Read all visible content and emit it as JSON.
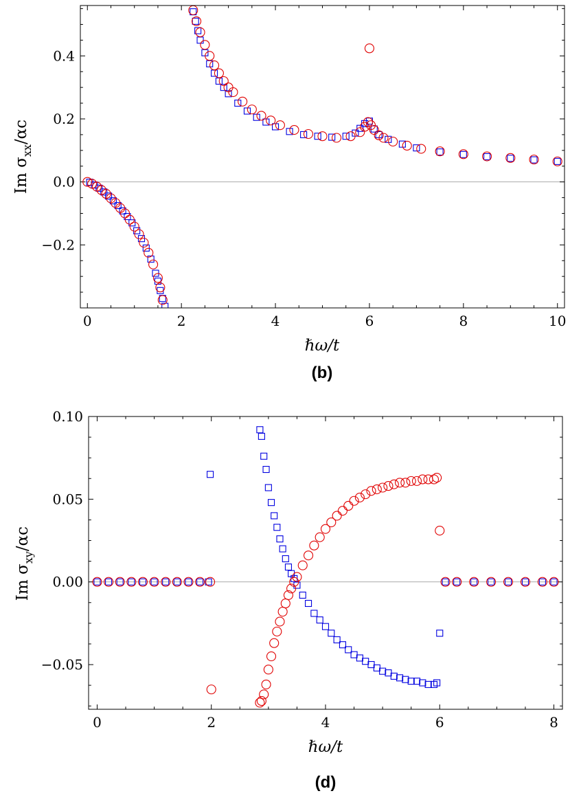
{
  "figure": {
    "panels": [
      "b",
      "d"
    ]
  },
  "chart_data": [
    {
      "type": "scatter",
      "panel": "b",
      "panel_label": "(b)",
      "xlabel": "ℏω/t",
      "ylabel": "Im σ_xx/αc",
      "ylabel_main": "Im σ",
      "ylabel_sub": "xx",
      "ylabel_tail": "/αc",
      "xlim": [
        -0.15,
        10.15
      ],
      "ylim": [
        -0.4,
        0.56
      ],
      "xticks": [
        0,
        2,
        4,
        6,
        8,
        10
      ],
      "xtick_labels": [
        "0",
        "2",
        "4",
        "6",
        "8",
        "10"
      ],
      "yticks": [
        -0.2,
        0.0,
        0.2,
        0.4
      ],
      "ytick_labels": [
        "−0.2",
        "0.0",
        "0.2",
        "0.4"
      ],
      "zero_line": true,
      "legend": "none",
      "series": [
        {
          "name": "squares",
          "marker": "square",
          "color": "#0000e0",
          "x": [
            0.05,
            0.15,
            0.25,
            0.35,
            0.45,
            0.55,
            0.65,
            0.75,
            0.85,
            0.95,
            1.05,
            1.15,
            1.25,
            1.35,
            1.45,
            1.5,
            1.55,
            1.6,
            1.65,
            2.25,
            2.3,
            2.35,
            2.4,
            2.5,
            2.6,
            2.7,
            2.8,
            2.9,
            3.0,
            3.2,
            3.4,
            3.6,
            3.8,
            4.0,
            4.3,
            4.6,
            4.9,
            5.2,
            5.5,
            5.7,
            5.8,
            5.9,
            6.0,
            6.1,
            6.2,
            6.4,
            6.7,
            7.0,
            7.5,
            8.0,
            8.5,
            9.0,
            9.5,
            10.0
          ],
          "y": [
            -0.001,
            -0.01,
            -0.02,
            -0.032,
            -0.045,
            -0.06,
            -0.075,
            -0.092,
            -0.11,
            -0.13,
            -0.155,
            -0.18,
            -0.21,
            -0.245,
            -0.29,
            -0.315,
            -0.345,
            -0.37,
            -0.395,
            0.54,
            0.51,
            0.48,
            0.45,
            0.41,
            0.375,
            0.345,
            0.32,
            0.3,
            0.28,
            0.25,
            0.225,
            0.205,
            0.19,
            0.175,
            0.16,
            0.15,
            0.145,
            0.142,
            0.145,
            0.155,
            0.17,
            0.185,
            0.193,
            0.168,
            0.15,
            0.135,
            0.12,
            0.108,
            0.095,
            0.087,
            0.08,
            0.075,
            0.07,
            0.065
          ]
        },
        {
          "name": "circles",
          "marker": "circle",
          "color": "#e00000",
          "x": [
            0.0,
            0.1,
            0.2,
            0.3,
            0.4,
            0.5,
            0.6,
            0.7,
            0.8,
            0.9,
            1.0,
            1.1,
            1.2,
            1.3,
            1.4,
            1.5,
            1.55,
            1.6,
            2.25,
            2.32,
            2.4,
            2.5,
            2.6,
            2.7,
            2.8,
            2.9,
            3.0,
            3.1,
            3.3,
            3.5,
            3.7,
            3.9,
            4.1,
            4.4,
            4.7,
            5.0,
            5.3,
            5.6,
            5.8,
            5.9,
            5.97,
            6.0,
            6.03,
            6.1,
            6.2,
            6.3,
            6.5,
            6.8,
            7.1,
            7.5,
            8.0,
            8.5,
            9.0,
            9.5,
            10.0
          ],
          "y": [
            0.0,
            -0.006,
            -0.015,
            -0.026,
            -0.038,
            -0.052,
            -0.067,
            -0.083,
            -0.1,
            -0.12,
            -0.142,
            -0.166,
            -0.193,
            -0.225,
            -0.262,
            -0.305,
            -0.335,
            -0.375,
            0.545,
            0.51,
            0.475,
            0.435,
            0.4,
            0.37,
            0.345,
            0.32,
            0.3,
            0.285,
            0.255,
            0.23,
            0.21,
            0.195,
            0.18,
            0.165,
            0.152,
            0.145,
            0.14,
            0.145,
            0.158,
            0.175,
            0.19,
            0.424,
            0.18,
            0.165,
            0.148,
            0.14,
            0.128,
            0.115,
            0.105,
            0.097,
            0.088,
            0.081,
            0.076,
            0.071,
            0.065
          ]
        }
      ]
    },
    {
      "type": "scatter",
      "panel": "d",
      "panel_label": "(d)",
      "xlabel": "ℏω/t",
      "ylabel": "Im σ_xy/αc",
      "ylabel_main": "Im σ",
      "ylabel_sub": "xy",
      "ylabel_tail": "/αc",
      "xlim": [
        -0.15,
        8.15
      ],
      "ylim": [
        -0.077,
        0.1
      ],
      "xticks": [
        0,
        2,
        4,
        6,
        8
      ],
      "xtick_labels": [
        "0",
        "2",
        "4",
        "6",
        "8"
      ],
      "yticks": [
        -0.05,
        0.0,
        0.05,
        0.1
      ],
      "ytick_labels": [
        "−0.05",
        "0.00",
        "0.05",
        "0.10"
      ],
      "zero_line": true,
      "legend": "none",
      "series": [
        {
          "name": "squares",
          "marker": "square",
          "color": "#0000e0",
          "x": [
            0.0,
            0.2,
            0.4,
            0.6,
            0.8,
            1.0,
            1.2,
            1.4,
            1.6,
            1.8,
            1.95,
            1.98,
            2.85,
            2.88,
            2.92,
            2.96,
            3.0,
            3.05,
            3.1,
            3.15,
            3.2,
            3.25,
            3.3,
            3.35,
            3.4,
            3.45,
            3.5,
            3.6,
            3.7,
            3.8,
            3.9,
            4.0,
            4.1,
            4.2,
            4.3,
            4.4,
            4.5,
            4.6,
            4.7,
            4.8,
            4.9,
            5.0,
            5.1,
            5.2,
            5.3,
            5.4,
            5.5,
            5.6,
            5.7,
            5.8,
            5.9,
            5.95,
            6.0,
            6.1,
            6.3,
            6.6,
            6.9,
            7.2,
            7.5,
            7.8,
            8.0
          ],
          "y": [
            0,
            0,
            0,
            0,
            0,
            0,
            0,
            0,
            0,
            0,
            0,
            0.065,
            0.092,
            0.088,
            0.076,
            0.068,
            0.057,
            0.048,
            0.04,
            0.033,
            0.026,
            0.02,
            0.014,
            0.009,
            0.005,
            0.002,
            -0.002,
            -0.008,
            -0.013,
            -0.019,
            -0.023,
            -0.027,
            -0.031,
            -0.035,
            -0.038,
            -0.041,
            -0.044,
            -0.046,
            -0.048,
            -0.05,
            -0.052,
            -0.054,
            -0.055,
            -0.057,
            -0.058,
            -0.059,
            -0.06,
            -0.06,
            -0.061,
            -0.062,
            -0.062,
            -0.061,
            -0.031,
            0,
            0,
            0,
            0,
            0,
            0,
            0,
            0
          ]
        },
        {
          "name": "circles",
          "marker": "circle",
          "color": "#e00000",
          "x": [
            0.0,
            0.2,
            0.4,
            0.6,
            0.8,
            1.0,
            1.2,
            1.4,
            1.6,
            1.8,
            1.98,
            2.0,
            2.85,
            2.88,
            2.92,
            2.96,
            3.0,
            3.05,
            3.1,
            3.15,
            3.2,
            3.25,
            3.3,
            3.35,
            3.4,
            3.45,
            3.5,
            3.6,
            3.7,
            3.8,
            3.9,
            4.0,
            4.1,
            4.2,
            4.3,
            4.4,
            4.5,
            4.6,
            4.7,
            4.8,
            4.9,
            5.0,
            5.1,
            5.2,
            5.3,
            5.4,
            5.5,
            5.6,
            5.7,
            5.8,
            5.9,
            5.95,
            6.0,
            6.1,
            6.3,
            6.6,
            6.9,
            7.2,
            7.5,
            7.8,
            8.0
          ],
          "y": [
            0,
            0,
            0,
            0,
            0,
            0,
            0,
            0,
            0,
            0,
            0,
            -0.065,
            -0.073,
            -0.072,
            -0.068,
            -0.062,
            -0.053,
            -0.045,
            -0.037,
            -0.03,
            -0.024,
            -0.018,
            -0.013,
            -0.008,
            -0.004,
            0.0,
            0.003,
            0.01,
            0.016,
            0.022,
            0.027,
            0.032,
            0.036,
            0.04,
            0.043,
            0.046,
            0.049,
            0.051,
            0.053,
            0.055,
            0.056,
            0.057,
            0.058,
            0.059,
            0.06,
            0.06,
            0.061,
            0.061,
            0.062,
            0.062,
            0.062,
            0.063,
            0.031,
            0,
            0,
            0,
            0,
            0,
            0,
            0,
            0
          ]
        }
      ]
    }
  ]
}
